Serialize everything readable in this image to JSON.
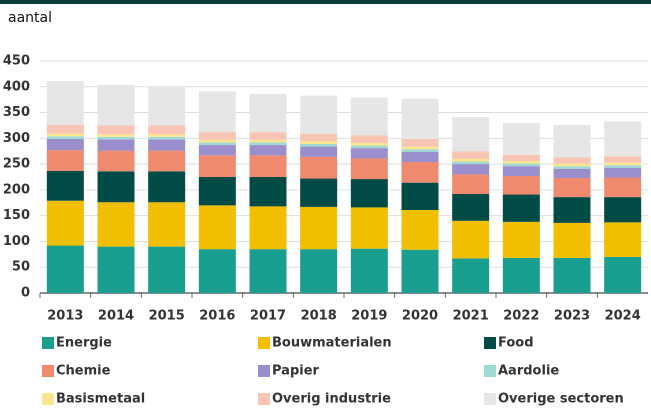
{
  "chart_data": {
    "type": "stacked_bar",
    "y_label": "aantal",
    "categories": [
      "2013",
      "2014",
      "2015",
      "2016",
      "2017",
      "2018",
      "2019",
      "2020",
      "2021",
      "2022",
      "2023",
      "2024"
    ],
    "series": [
      {
        "name": "Energie",
        "color": "#1a9e8f",
        "values": [
          92,
          90,
          90,
          85,
          85,
          85,
          86,
          84,
          67,
          68,
          68,
          70
        ]
      },
      {
        "name": "Bouwmaterialen",
        "color": "#f2be00",
        "values": [
          87,
          86,
          86,
          85,
          83,
          82,
          80,
          77,
          73,
          70,
          68,
          67
        ]
      },
      {
        "name": "Food",
        "color": "#004b45",
        "values": [
          58,
          60,
          60,
          55,
          57,
          55,
          55,
          53,
          52,
          53,
          50,
          49
        ]
      },
      {
        "name": "Chemie",
        "color": "#ef8a6f",
        "values": [
          40,
          40,
          40,
          42,
          42,
          42,
          40,
          40,
          38,
          36,
          37,
          38
        ]
      },
      {
        "name": "Papier",
        "color": "#9a8fcc",
        "values": [
          22,
          22,
          22,
          20,
          20,
          20,
          20,
          20,
          20,
          19,
          18,
          19
        ]
      },
      {
        "name": "Aardolie",
        "color": "#9fd9d3",
        "values": [
          5,
          5,
          5,
          5,
          5,
          5,
          5,
          5,
          5,
          5,
          5,
          5
        ]
      },
      {
        "name": "Basismetaal",
        "color": "#fbe58d",
        "values": [
          5,
          5,
          5,
          5,
          5,
          5,
          5,
          5,
          5,
          5,
          5,
          5
        ]
      },
      {
        "name": "Overig industrie",
        "color": "#f8c4b4",
        "values": [
          17,
          17,
          17,
          15,
          15,
          15,
          15,
          15,
          15,
          12,
          12,
          12
        ]
      },
      {
        "name": "Overige sectoren",
        "color": "#e6e6e6",
        "values": [
          85,
          79,
          76,
          79,
          74,
          74,
          73,
          78,
          66,
          62,
          63,
          68
        ]
      }
    ],
    "ylim": [
      0,
      450
    ],
    "yticks": [
      0,
      50,
      100,
      150,
      200,
      250,
      300,
      350,
      400,
      450
    ],
    "grid": true
  }
}
